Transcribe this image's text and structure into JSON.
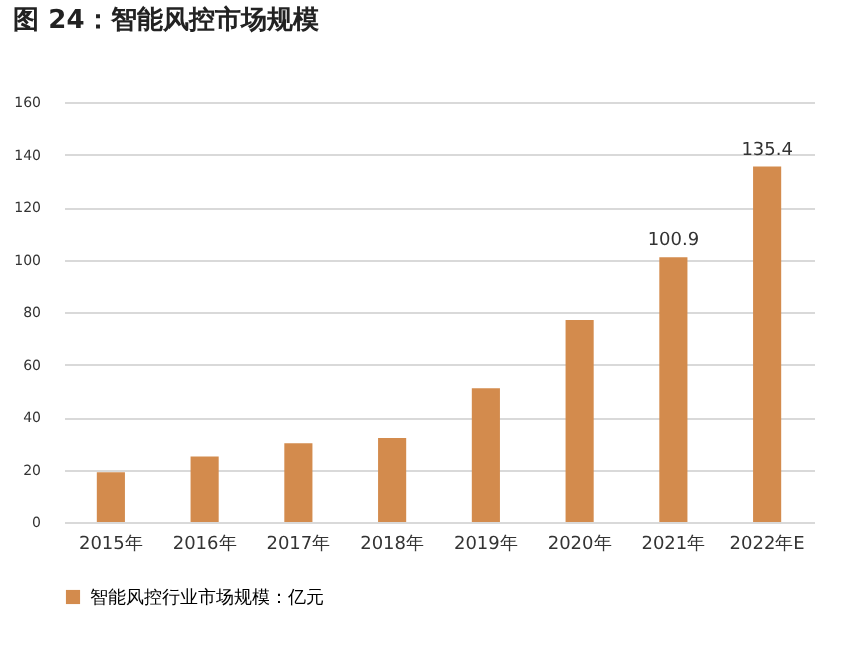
{
  "chart_data": {
    "type": "bar",
    "title": "图 24：智能风控市场规模",
    "categories": [
      "2015年",
      "2016年",
      "2017年",
      "2018年",
      "2019年",
      "2020年",
      "2021年",
      "2022年E"
    ],
    "series": [
      {
        "name": "智能风控行业市场规模：亿元",
        "color": "#d38b4d",
        "values": [
          19,
          25,
          30,
          32,
          51,
          77,
          100.9,
          135.4
        ],
        "value_labels": [
          null,
          null,
          null,
          null,
          null,
          null,
          "100.9",
          "135.4"
        ]
      }
    ],
    "ylim": [
      0,
      160
    ],
    "yticks": [
      0,
      20,
      40,
      60,
      80,
      100,
      120,
      140,
      160
    ],
    "grid": "y",
    "legend": "bottom"
  }
}
